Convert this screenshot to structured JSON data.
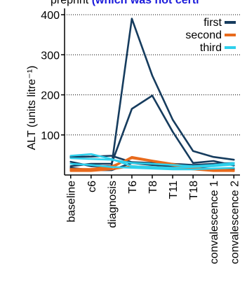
{
  "header": {
    "prefix": "preprint ",
    "note": "(which was not certi"
  },
  "colors": {
    "note": "#1a1adb",
    "axis": "#000000",
    "grid": "#000000"
  },
  "chart_data": {
    "type": "line",
    "ylabel": "ALT (units litre⁻¹)",
    "xlabel": "",
    "ylim": [
      0,
      400
    ],
    "yticks": [
      100,
      200,
      300,
      400
    ],
    "grid": "horizontal dotted",
    "legend_position": "top-right",
    "categories": [
      "baseline",
      "c6",
      "diagnosis",
      "T6",
      "T8",
      "T11",
      "T18",
      "convalescence 1",
      "convalescence 2"
    ],
    "groups": [
      {
        "name": "first",
        "color": "#163c5e",
        "series": [
          {
            "values": [
              33,
              22,
              22,
              390,
              248,
              138,
              60,
              45,
              38
            ]
          },
          {
            "values": [
              22,
              28,
              28,
              165,
              198,
              108,
              30,
              35,
              24
            ]
          },
          {
            "values": [
              45,
              46,
              48,
              32,
              30,
              28,
              25,
              28,
              30
            ]
          },
          {
            "values": [
              18,
              12,
              12,
              30,
              25,
              22,
              18,
              15,
              15
            ]
          }
        ]
      },
      {
        "name": "second",
        "color": "#e86a1c",
        "series": [
          {
            "values": [
              12,
              12,
              18,
              45,
              36,
              28,
              18,
              12,
              10
            ]
          },
          {
            "values": [
              15,
              15,
              22,
              42,
              34,
              24,
              16,
              14,
              12
            ]
          },
          {
            "values": [
              10,
              10,
              14,
              22,
              20,
              18,
              14,
              10,
              10
            ]
          }
        ]
      },
      {
        "name": "third",
        "color": "#2fd0ec",
        "series": [
          {
            "values": [
              48,
              52,
              40,
              22,
              20,
              18,
              20,
              22,
              26
            ]
          },
          {
            "values": [
              42,
              40,
              38,
              30,
              28,
              25,
              22,
              25,
              30
            ]
          },
          {
            "values": [
              28,
              25,
              20,
              18,
              16,
              14,
              14,
              16,
              18
            ]
          }
        ]
      }
    ]
  }
}
